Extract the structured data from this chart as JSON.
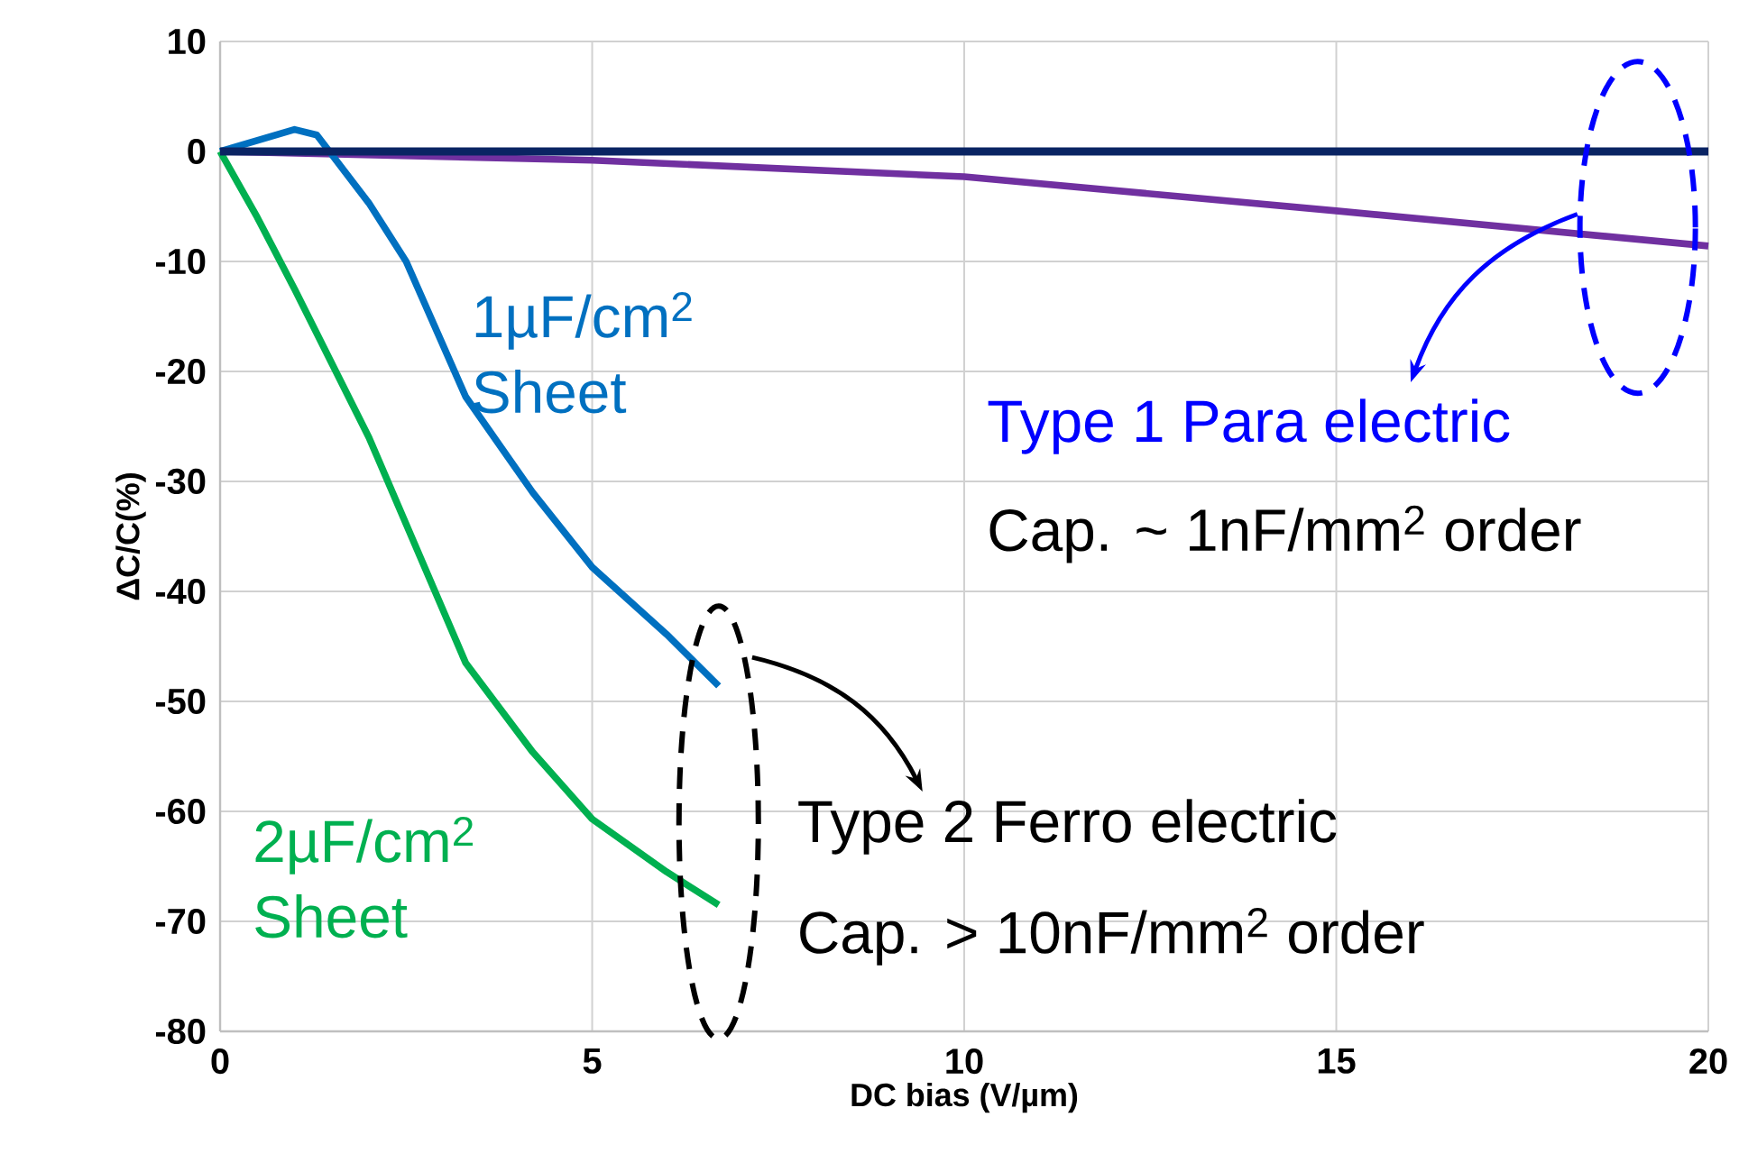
{
  "chart_data": {
    "type": "line",
    "xlabel": "DC bias (V/µm)",
    "ylabel": "ΔC/C(%)",
    "xlim": [
      0,
      20
    ],
    "ylim": [
      -80,
      10
    ],
    "xticks": [
      0,
      5,
      10,
      15,
      20
    ],
    "yticks": [
      -80,
      -70,
      -60,
      -50,
      -40,
      -30,
      -20,
      -10,
      0,
      10
    ],
    "grid": true,
    "legend": false,
    "marker": "none",
    "line_style": "solid",
    "series": [
      {
        "color": "#0a2463",
        "x": [
          0,
          20
        ],
        "values": [
          0,
          0
        ]
      },
      {
        "color": "#7030a0",
        "x": [
          0,
          5,
          10,
          15,
          20
        ],
        "values": [
          0,
          -0.8,
          -2.3,
          -5.4,
          -8.6
        ]
      },
      {
        "name": "1µF/cm$^{2}$ Sheet",
        "color": "#0070c0",
        "x": [
          0,
          0.5,
          1,
          1.3,
          2,
          2.5,
          3.3,
          4.2,
          5,
          6,
          6.7
        ],
        "values": [
          0,
          1,
          2,
          1.5,
          -4.7,
          -10,
          -22.3,
          -31,
          -37.8,
          -43.9,
          -48.6
        ]
      },
      {
        "name": "2µF/cm$^{2}$ Sheet",
        "color": "#00b050",
        "x": [
          0,
          0.5,
          1,
          2,
          3.3,
          4.2,
          5,
          6,
          6.7
        ],
        "values": [
          0,
          -6,
          -12.5,
          -26,
          -46.5,
          -54.6,
          -60.7,
          -65.5,
          -68.5
        ]
      }
    ],
    "annotations": [
      "Type 1 Para electric",
      "Cap. ~ 1nF/mm$^{2}$ order",
      "Type 2 Ferro electric",
      "Cap. > 10nF/mm$^{2}$ order"
    ]
  }
}
